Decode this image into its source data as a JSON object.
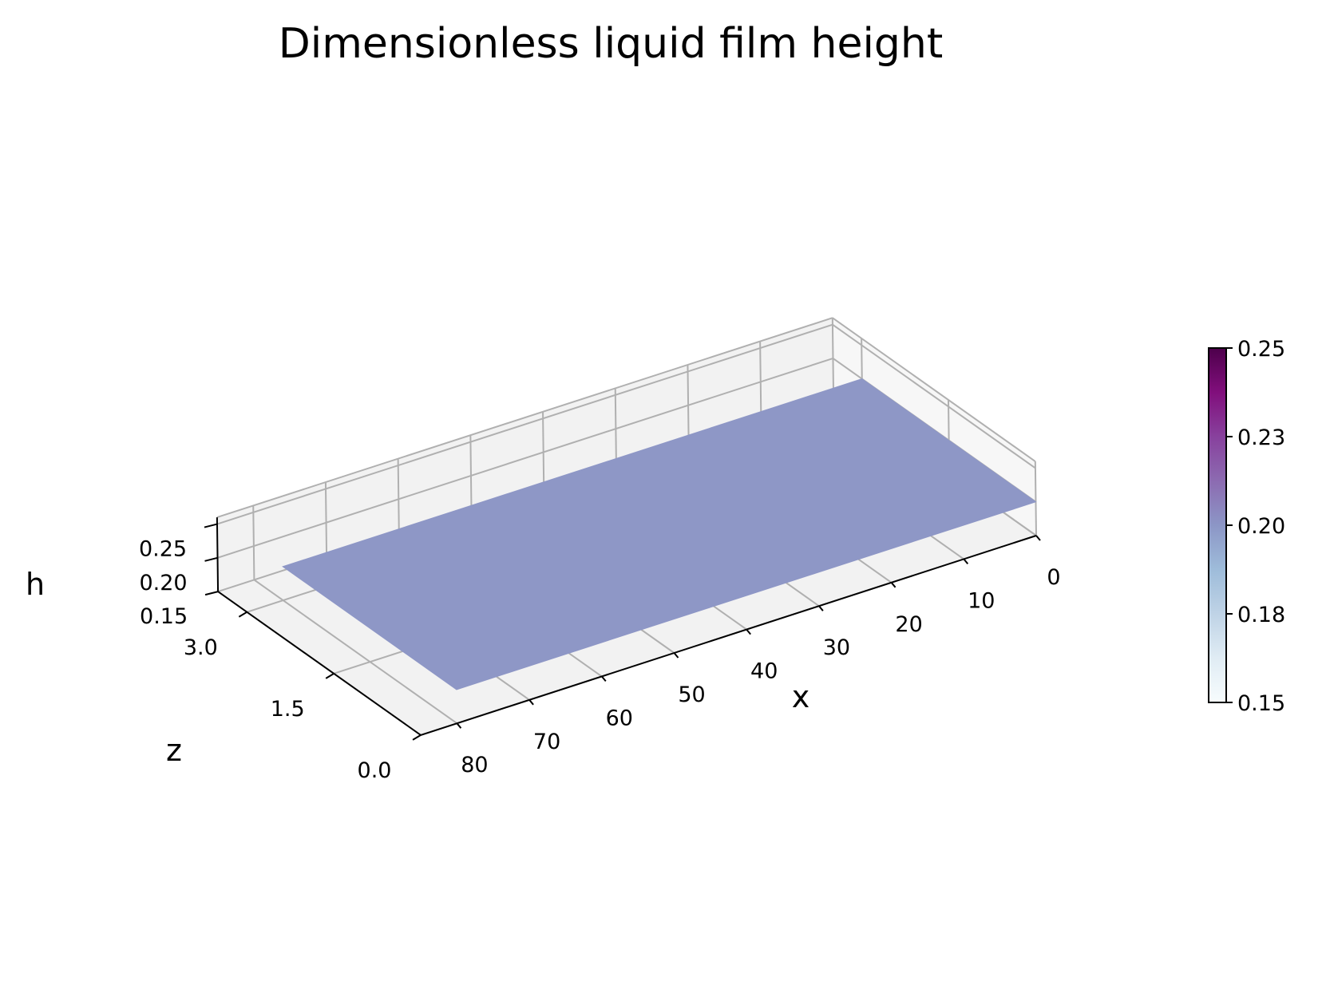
{
  "chart_data": {
    "type": "surface3d",
    "title": "Dimensionless liquid film height",
    "xlabel": "x",
    "ylabel": "z",
    "zlabel": "h",
    "x_ticks": [
      "0",
      "10",
      "20",
      "30",
      "40",
      "50",
      "60",
      "70",
      "80"
    ],
    "y_ticks": [
      "0.0",
      "1.5",
      "3.0"
    ],
    "z_ticks": [
      "0.15",
      "0.20",
      "0.25"
    ],
    "xlim": [
      0,
      85
    ],
    "ylim": [
      0,
      3.5
    ],
    "zlim": [
      0.15,
      0.26
    ],
    "surface": {
      "x_range": [
        0,
        80
      ],
      "z_range": [
        0,
        3
      ],
      "h": 0.2
    },
    "colorbar": {
      "colormap": "BuPu",
      "range": [
        0.15,
        0.25
      ],
      "ticks": [
        "0.15",
        "0.18",
        "0.20",
        "0.23",
        "0.25"
      ],
      "tick_values": [
        0.15,
        0.175,
        0.2,
        0.225,
        0.25
      ],
      "colors": [
        "#f7fcfd",
        "#e0ecf4",
        "#bfd3e6",
        "#9ebcda",
        "#8c96c6",
        "#8c6bb1",
        "#88419d",
        "#810f7c",
        "#4d004b"
      ]
    },
    "grid": true,
    "pane_color": "#f2f2f2",
    "grid_color": "#b0b0b0",
    "surface_color": "#8e97c6"
  }
}
